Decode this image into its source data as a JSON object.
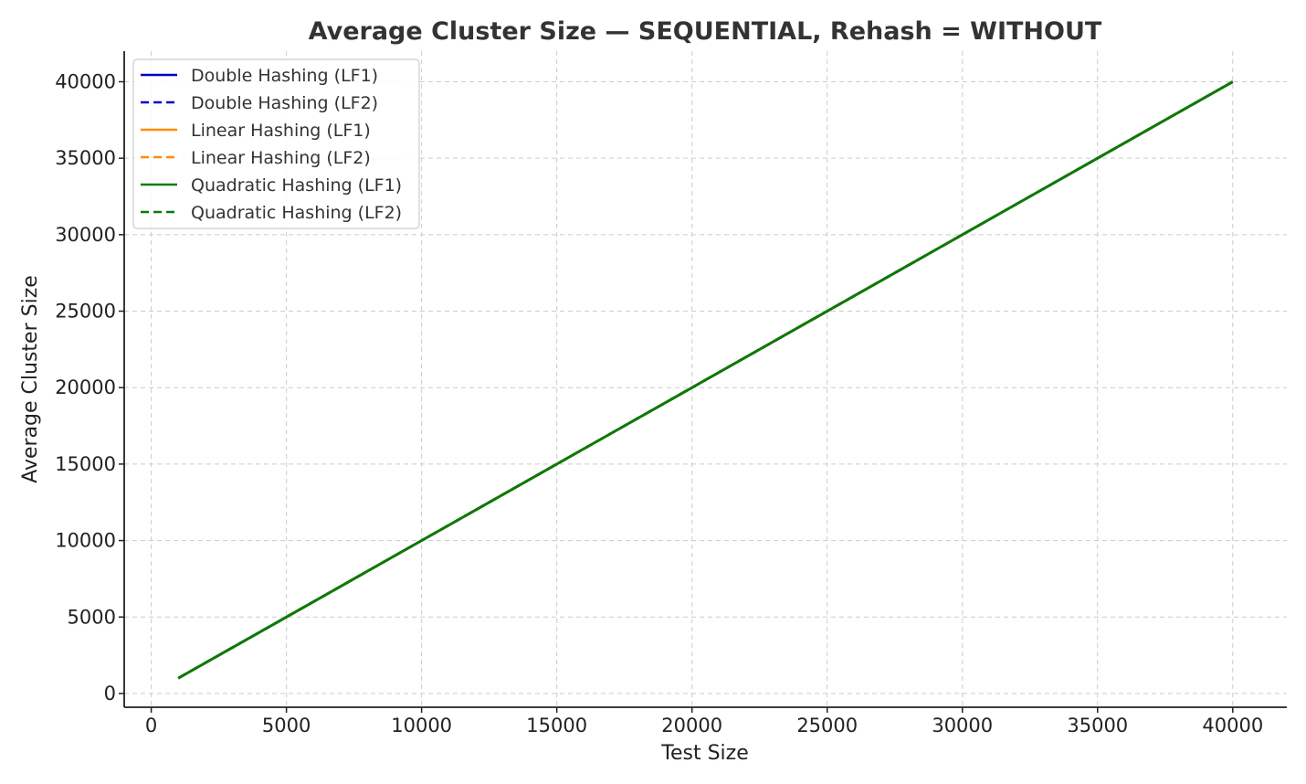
{
  "chart_data": {
    "type": "line",
    "title": "Average Cluster Size — SEQUENTIAL, Rehash = WITHOUT",
    "xlabel": "Test Size",
    "ylabel": "Average Cluster Size",
    "xlim": [
      -1000,
      42000
    ],
    "ylim": [
      -900,
      42000
    ],
    "xticks": [
      0,
      5000,
      10000,
      15000,
      20000,
      25000,
      30000,
      35000,
      40000
    ],
    "yticks": [
      0,
      5000,
      10000,
      15000,
      20000,
      25000,
      30000,
      35000,
      40000
    ],
    "grid": true,
    "legend_position": "top-left",
    "x": [
      1000,
      40000
    ],
    "series": [
      {
        "name": "Double Hashing (LF1)",
        "color": "#0000cc",
        "dash": "solid",
        "values": [
          1000,
          40000
        ]
      },
      {
        "name": "Double Hashing (LF2)",
        "color": "#0000cc",
        "dash": "dashed",
        "values": [
          1000,
          40000
        ]
      },
      {
        "name": "Linear Hashing (LF1)",
        "color": "#ff8c00",
        "dash": "solid",
        "values": [
          1000,
          40000
        ]
      },
      {
        "name": "Linear Hashing (LF2)",
        "color": "#ff8c00",
        "dash": "dashed",
        "values": [
          1000,
          40000
        ]
      },
      {
        "name": "Quadratic Hashing (LF1)",
        "color": "#087b08",
        "dash": "solid",
        "values": [
          1000,
          40000
        ]
      },
      {
        "name": "Quadratic Hashing (LF2)",
        "color": "#087b08",
        "dash": "dashed",
        "values": [
          1000,
          40000
        ]
      }
    ]
  }
}
